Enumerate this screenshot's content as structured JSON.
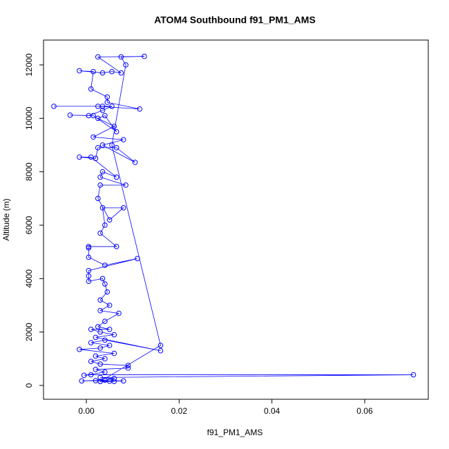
{
  "chart_data": {
    "type": "line",
    "title": "ATOM4 Southbound f91_PM1_AMS",
    "x_label": "f91_PM1_AMS",
    "y_label": "Altitude (m)",
    "color": "#0000ff",
    "marker": "circle",
    "x": [
      0.003,
      0.005,
      0.008,
      0.002,
      -0.001,
      0.004,
      0.006,
      0.003,
      0.0705,
      0.001,
      -0.0005,
      0.004,
      0.002,
      0.009,
      0.009,
      0.003,
      0.001,
      0.004,
      0.002,
      0.006,
      -0.0015,
      0.003,
      0.005,
      0.001,
      0.004,
      0.016,
      0.002,
      0.006,
      0.003,
      0.001,
      0.005,
      0.0025,
      0.004,
      0.007,
      0.003,
      0.005,
      0.003,
      0.0045,
      0.004,
      0.0035,
      0.0005,
      0.0005,
      0.0005,
      0.011,
      0.004,
      0.0005,
      0.0005,
      0.0005,
      0.0065,
      0.003,
      0.004,
      0.0035,
      0.008,
      0.005,
      0.0025,
      0.003,
      0.0085,
      0.003,
      0.0035,
      0.0065,
      0.001,
      -0.0015,
      0.002,
      0.0025,
      0.0065,
      0.0105,
      0.0035,
      0.008,
      0.0015,
      0.006,
      0.0025,
      0.004,
      0.0065,
      0.0015,
      -0.0035,
      0.0005,
      0.0035,
      0.0055,
      0.0035,
      -0.007,
      0.0025,
      0.0115,
      0.0045,
      0.0045,
      0.001,
      0.0015,
      -0.0015,
      0.0035,
      0.0055,
      0.0075,
      0.0025,
      0.0125,
      0.0075,
      0.0085,
      0.0055,
      0.016,
      0.003,
      0.006
    ],
    "y": [
      150,
      160,
      170,
      180,
      170,
      200,
      260,
      300,
      400,
      400,
      380,
      500,
      600,
      650,
      750,
      800,
      900,
      1000,
      1100,
      1200,
      1350,
      1400,
      1500,
      1600,
      1700,
      1300,
      1800,
      1900,
      2000,
      2100,
      2100,
      2200,
      2400,
      2700,
      2800,
      3000,
      3200,
      3500,
      3800,
      4000,
      3900,
      4100,
      4300,
      4750,
      4500,
      4800,
      5150,
      5200,
      5200,
      5700,
      6000,
      6650,
      6650,
      6200,
      7000,
      7500,
      7500,
      7800,
      8000,
      7800,
      8550,
      8550,
      8500,
      8900,
      8900,
      8350,
      9000,
      9200,
      9300,
      9700,
      10000,
      10100,
      9500,
      10100,
      10120,
      10100,
      10300,
      10450,
      10450,
      10450,
      10450,
      10350,
      10600,
      10800,
      11100,
      11750,
      11780,
      11700,
      11750,
      11700,
      12300,
      12320,
      12300,
      12000,
      9000,
      1500,
      150,
      150
    ],
    "xlim": [
      -0.00923,
      0.0737
    ],
    "ylim": [
      -517,
      12930
    ],
    "xticks": [
      {
        "value": 0,
        "label": "0.00"
      },
      0.02,
      0.04,
      0.06
    ],
    "yticks": [
      0,
      2000,
      4000,
      6000,
      8000,
      10000,
      12000
    ]
  }
}
